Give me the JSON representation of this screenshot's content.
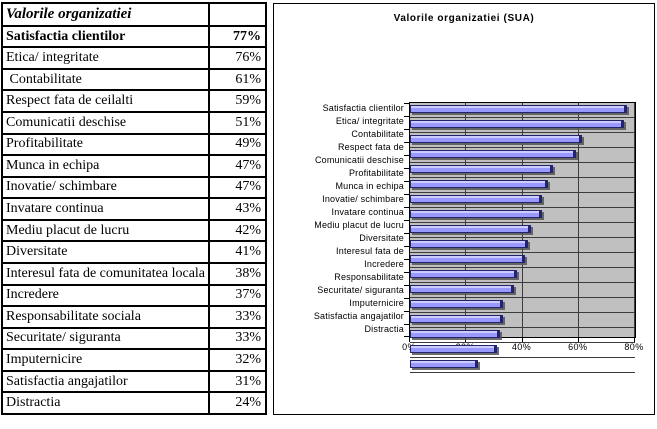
{
  "table": {
    "header": {
      "label": "Valorile organizatiei",
      "value": ""
    },
    "rows": [
      {
        "label": "Satisfactia clientilor",
        "value": "77%",
        "bold": true
      },
      {
        "label": "Etica/ integritate",
        "value": "76%"
      },
      {
        "label": " Contabilitate",
        "value": "61%"
      },
      {
        "label": "Respect fata de ceilalti",
        "value": "59%"
      },
      {
        "label": "Comunicatii deschise",
        "value": "51%"
      },
      {
        "label": "Profitabilitate",
        "value": "49%"
      },
      {
        "label": "Munca in echipa",
        "value": "47%"
      },
      {
        "label": "Inovatie/ schimbare",
        "value": "47%"
      },
      {
        "label": "Invatare continua",
        "value": "43%"
      },
      {
        "label": "Mediu placut de lucru",
        "value": "42%"
      },
      {
        "label": "Diversitate",
        "value": "41%"
      },
      {
        "label": "Interesul fata de comunitatea locala",
        "value": "38%"
      },
      {
        "label": "Incredere",
        "value": "37%"
      },
      {
        "label": "Responsabilitate sociala",
        "value": "33%"
      },
      {
        "label": "Securitate/ siguranta",
        "value": "33%"
      },
      {
        "label": "Imputernicire",
        "value": "32%"
      },
      {
        "label": "Satisfactia angajatilor",
        "value": "31%"
      },
      {
        "label": "Distractia",
        "value": "24%"
      }
    ]
  },
  "chart_data": {
    "type": "bar",
    "orientation": "horizontal",
    "title": "Valorile organizatiei (SUA)",
    "categories": [
      "Satisfactia clientilor",
      "Etica/ integritate",
      "Contabilitate",
      "Respect fata de",
      "Comunicatii deschise",
      "Profitabilitate",
      "Munca in echipa",
      "Inovatie/ schimbare",
      "Invatare continua",
      "Mediu placut de lucru",
      "Diversitate",
      "Interesul fata de",
      "Incredere",
      "Responsabilitate",
      "Securitate/ siguranta",
      "Imputernicire",
      "Satisfactia angajatilor",
      "Distractia"
    ],
    "values": [
      77,
      76,
      61,
      59,
      51,
      49,
      47,
      47,
      43,
      42,
      41,
      38,
      37,
      33,
      33,
      32,
      31,
      24
    ],
    "unit": "%",
    "x_ticks": [
      "0%",
      "20%",
      "40%",
      "60%",
      "80%"
    ],
    "x_tick_values": [
      0,
      20,
      40,
      60,
      80
    ],
    "xlim": [
      0,
      80
    ],
    "grid": true,
    "legend": false,
    "plot_bg": "#c0c0c0",
    "bar_fill": "#9999ff",
    "bar_highlight": "#ccccff",
    "bar_border": "#24246b",
    "gridline_color": "#3c3c3c"
  }
}
